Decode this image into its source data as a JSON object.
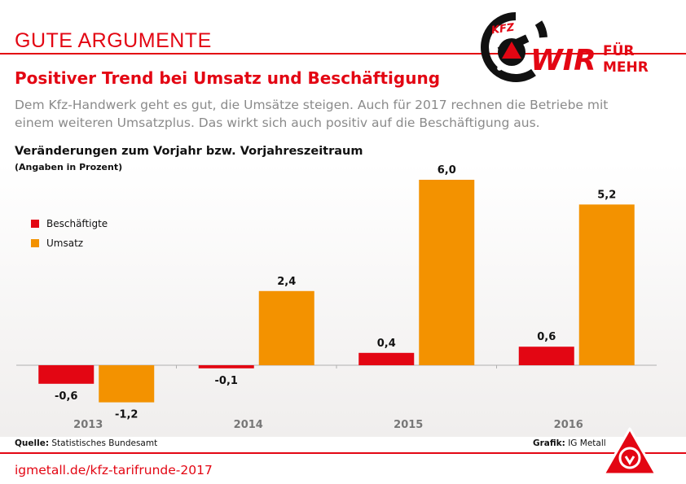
{
  "header": {
    "title": "GUTE ARGUMENTE"
  },
  "logo": {
    "kfz": "KFZ",
    "wir": "WIR",
    "fuer": "FÜR",
    "mehr": "MEHR"
  },
  "headline": "Positiver Trend bei Umsatz und Beschäftigung",
  "subtitle": "Dem Kfz-Handwerk geht es gut, die Umsätze steigen. Auch für 2017 rechnen die Betriebe mit einem weiteren Umsatzplus. Das wirkt sich auch positiv auf die Beschäftigung aus.",
  "chart_data": {
    "type": "bar",
    "title": "Veränderungen zum Vorjahr bzw. Vorjahreszeitraum",
    "unit_label": "(Angaben in Prozent)",
    "categories": [
      "2013",
      "2014",
      "2015",
      "2016"
    ],
    "series": [
      {
        "name": "Beschäftigte",
        "color": "#e30613",
        "values": [
          -0.6,
          -0.1,
          0.4,
          0.6
        ],
        "labels": [
          "-0,6",
          "-0,1",
          "0,4",
          "0,6"
        ]
      },
      {
        "name": "Umsatz",
        "color": "#f39200",
        "values": [
          -1.2,
          2.4,
          6.0,
          5.2
        ],
        "labels": [
          "-1,2",
          "2,4",
          "6,0",
          "5,2"
        ]
      }
    ],
    "ylim": [
      -1.5,
      6.5
    ],
    "grid": false,
    "legend_position": "top-left"
  },
  "source": {
    "label": "Quelle:",
    "text": "Statistisches Bundesamt"
  },
  "credit": {
    "label": "Grafik:",
    "text": "IG Metall"
  },
  "footer": {
    "url": "igmetall.de/kfz-tarifrunde-2017"
  },
  "colors": {
    "accent": "#e30613",
    "orange": "#f39200",
    "text_gray": "#8a8a8a"
  }
}
